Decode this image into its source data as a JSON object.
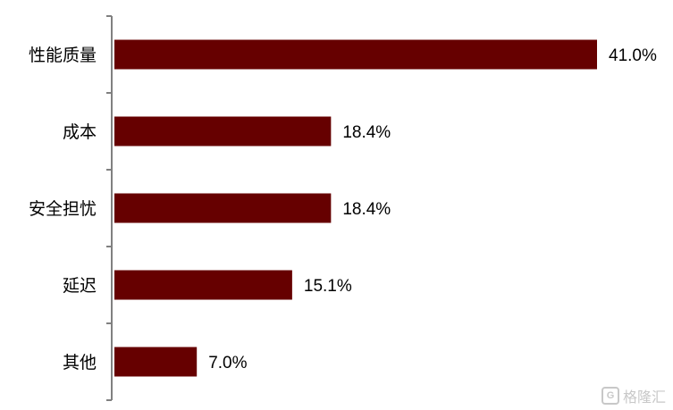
{
  "chart_data": {
    "type": "bar",
    "orientation": "horizontal",
    "categories": [
      "性能质量",
      "成本",
      "安全担忧",
      "延迟",
      "其他"
    ],
    "values": [
      41.0,
      18.4,
      18.4,
      15.1,
      7.0
    ],
    "value_labels": [
      "41.0%",
      "18.4%",
      "18.4%",
      "15.1%",
      "7.0%"
    ],
    "bar_color": "#660000",
    "xlim": [
      0,
      41.0
    ],
    "grid": false,
    "legend": "none"
  },
  "watermark": {
    "icon": "G",
    "text": "格隆汇"
  }
}
